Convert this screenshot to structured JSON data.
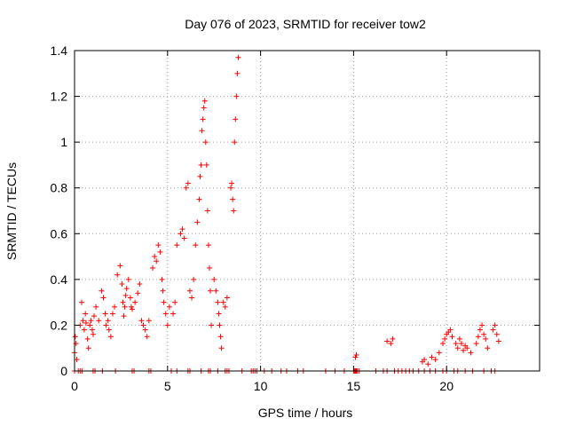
{
  "chart_data": {
    "type": "scatter",
    "title": "Day 076 of 2023, SRMTID for receiver tow2",
    "xlabel": "GPS time / hours",
    "ylabel": "SRMTID / TECUs",
    "xlim": [
      0,
      25
    ],
    "ylim": [
      0,
      1.4
    ],
    "xticks": [
      0,
      5,
      10,
      15,
      20
    ],
    "xtick_labels": [
      "0",
      "5",
      "10",
      "15",
      "20"
    ],
    "yticks": [
      0,
      0.2,
      0.4,
      0.6,
      0.8,
      1.0,
      1.2,
      1.4
    ],
    "ytick_labels": [
      "0",
      "0.2",
      "0.4",
      "0.6",
      "0.8",
      "1",
      "1.2",
      "1.4"
    ],
    "grid": true,
    "marker": "+",
    "color": "#ff0000",
    "series": [
      {
        "name": "SRMTID",
        "x": [
          0.0,
          0.04,
          0.08,
          0.12,
          0.3,
          0.38,
          0.45,
          0.52,
          0.58,
          0.62,
          0.7,
          0.75,
          0.82,
          0.88,
          0.95,
          1.0,
          1.05,
          1.15,
          1.3,
          1.45,
          1.55,
          1.65,
          1.7,
          1.8,
          1.85,
          1.95,
          2.05,
          2.15,
          2.3,
          2.45,
          2.55,
          2.6,
          2.65,
          2.7,
          2.75,
          2.8,
          2.9,
          3.0,
          3.05,
          3.1,
          3.25,
          3.4,
          3.5,
          3.6,
          3.7,
          3.8,
          3.9,
          4.0,
          4.2,
          4.3,
          4.4,
          4.5,
          4.6,
          4.7,
          4.75,
          4.8,
          4.9,
          5.0,
          5.1,
          5.3,
          5.4,
          5.5,
          5.7,
          5.8,
          5.9,
          6.0,
          6.1,
          6.2,
          6.3,
          6.4,
          6.5,
          6.6,
          6.7,
          6.75,
          6.8,
          6.85,
          6.9,
          6.95,
          7.0,
          7.05,
          7.1,
          7.15,
          7.2,
          7.25,
          7.3,
          7.35,
          7.5,
          7.6,
          7.7,
          7.75,
          7.8,
          7.85,
          7.9,
          8.0,
          8.1,
          8.2,
          8.4,
          8.45,
          8.5,
          8.55,
          8.6,
          8.65,
          8.7,
          8.75,
          8.8,
          15.1,
          15.15,
          16.8,
          17.0,
          17.1,
          18.7,
          18.8,
          19.0,
          19.2,
          19.4,
          19.6,
          19.8,
          19.9,
          20.0,
          20.1,
          20.2,
          20.3,
          20.5,
          20.6,
          20.7,
          20.8,
          20.9,
          21.0,
          21.1,
          21.3,
          21.6,
          21.7,
          21.8,
          21.9,
          22.0,
          22.1,
          22.2,
          22.5,
          22.6,
          22.7,
          22.8,
          0.0,
          0.2,
          0.3,
          0.4,
          1.0,
          1.1,
          1.5,
          2.2,
          3.1,
          3.2,
          4.0,
          4.1,
          5.2,
          5.5,
          6.1,
          6.2,
          6.8,
          7.2,
          7.3,
          7.7,
          8.1,
          8.2,
          8.3,
          9.0,
          9.5,
          9.6,
          9.7,
          9.8,
          10.2,
          10.6,
          11.1,
          11.4,
          12.0,
          12.3,
          13.5,
          14.0,
          14.5,
          15.0,
          15.05,
          15.1,
          15.15,
          15.2,
          15.3,
          16.2,
          16.6,
          16.8,
          17.2,
          17.4,
          17.6,
          17.8,
          18.0,
          18.2,
          18.5,
          18.8,
          19.1,
          19.4,
          19.8,
          20.0,
          20.4,
          20.6,
          21.0,
          21.4,
          22.0,
          22.4,
          22.6
        ],
        "y": [
          0.08,
          0.15,
          0.12,
          0.05,
          0.2,
          0.3,
          0.22,
          0.18,
          0.25,
          0.21,
          0.14,
          0.1,
          0.2,
          0.22,
          0.18,
          0.16,
          0.24,
          0.28,
          0.22,
          0.35,
          0.32,
          0.25,
          0.2,
          0.22,
          0.18,
          0.15,
          0.25,
          0.28,
          0.42,
          0.46,
          0.38,
          0.3,
          0.24,
          0.28,
          0.33,
          0.36,
          0.4,
          0.32,
          0.28,
          0.27,
          0.3,
          0.34,
          0.38,
          0.22,
          0.2,
          0.18,
          0.15,
          0.22,
          0.45,
          0.5,
          0.48,
          0.55,
          0.52,
          0.4,
          0.35,
          0.3,
          0.25,
          0.2,
          0.28,
          0.25,
          0.3,
          0.55,
          0.6,
          0.62,
          0.58,
          0.8,
          0.82,
          0.35,
          0.32,
          0.4,
          0.55,
          0.65,
          0.75,
          0.85,
          0.9,
          1.05,
          1.1,
          1.15,
          1.18,
          1.0,
          0.9,
          0.7,
          0.55,
          0.45,
          0.35,
          0.2,
          0.4,
          0.35,
          0.3,
          0.25,
          0.2,
          0.15,
          0.1,
          0.3,
          0.28,
          0.32,
          0.8,
          0.82,
          0.75,
          0.7,
          1.0,
          1.1,
          1.2,
          1.3,
          1.37,
          0.06,
          0.07,
          0.13,
          0.12,
          0.14,
          0.04,
          0.05,
          0.03,
          0.06,
          0.05,
          0.08,
          0.12,
          0.14,
          0.16,
          0.17,
          0.18,
          0.15,
          0.12,
          0.1,
          0.14,
          0.12,
          0.09,
          0.11,
          0.1,
          0.08,
          0.12,
          0.15,
          0.18,
          0.2,
          0.16,
          0.14,
          0.1,
          0.18,
          0.2,
          0.16,
          0.13,
          0,
          0,
          0,
          0,
          0,
          0,
          0,
          0,
          0,
          0,
          0,
          0,
          0,
          0,
          0,
          0,
          0,
          0,
          0,
          0,
          0,
          0,
          0,
          0,
          0,
          0,
          0,
          0,
          0,
          0,
          0,
          0,
          0,
          0,
          0,
          0,
          0,
          0,
          0,
          0,
          0,
          0,
          0,
          0,
          0,
          0,
          0,
          0,
          0,
          0,
          0,
          0,
          0,
          0,
          0,
          0,
          0,
          0,
          0,
          0,
          0,
          0,
          0,
          0,
          0
        ]
      }
    ]
  }
}
